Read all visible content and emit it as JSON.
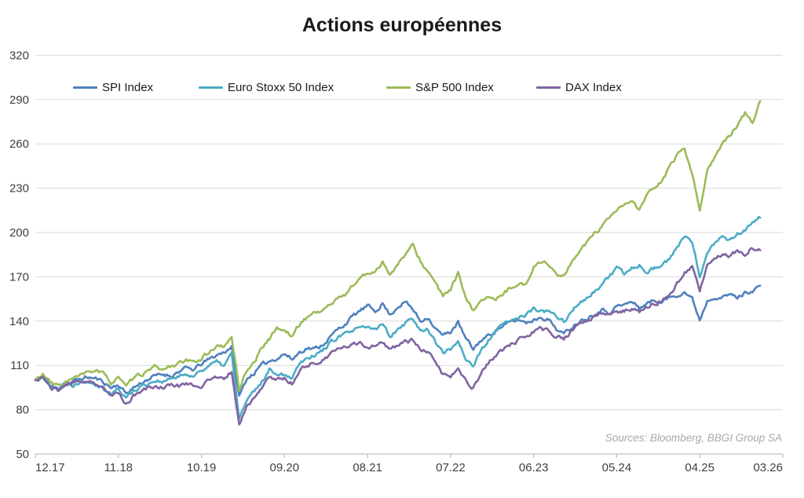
{
  "title": "Actions européennes",
  "source_note": "Sources: Bloomberg, BBGI Group SA",
  "colors": {
    "spi": "#4F81BD",
    "euro_stoxx": "#4BACC6",
    "sp500": "#9BBB59",
    "dax": "#8064A2",
    "gridline": "#d9d9d9",
    "axis_line": "#bfbfbf",
    "tick_text": "#3f3f3f"
  },
  "chart_data": {
    "type": "line",
    "title": "Actions européennes",
    "xlabel": "",
    "ylabel": "",
    "grid": true,
    "legend_position": "top",
    "x_axis": {
      "unit": "month_index_from_12.2017",
      "months_total": 99,
      "tick_months": [
        0,
        11,
        22,
        33,
        44,
        55,
        66,
        77,
        88,
        99
      ],
      "tick_labels": [
        "12.17",
        "11.18",
        "10.19",
        "09.20",
        "08.21",
        "07.22",
        "06.23",
        "05.24",
        "04.25",
        "03.26"
      ]
    },
    "y_axis": {
      "min": 50,
      "max": 320,
      "step": 30,
      "ticks": [
        50,
        80,
        110,
        140,
        170,
        200,
        230,
        260,
        290,
        320
      ]
    },
    "base_value": 100,
    "series": [
      {
        "name": "SPI Index",
        "color": "#4F81BD",
        "seed": 11,
        "values": [
          100,
          102,
          96,
          94,
          97,
          99,
          101,
          102,
          101,
          99,
          95,
          97,
          91,
          95,
          98,
          101,
          103,
          104,
          103,
          106,
          108,
          107,
          111,
          114,
          117,
          119,
          123,
          89,
          101,
          105,
          110,
          113,
          115,
          118,
          114,
          119,
          122,
          121,
          124,
          129,
          134,
          138,
          143,
          147,
          150,
          147,
          152,
          144,
          150,
          153,
          148,
          140,
          143,
          135,
          130,
          133,
          139,
          128,
          121,
          127,
          130,
          134,
          137,
          139,
          141,
          139,
          141,
          143,
          141,
          135,
          131,
          136,
          140,
          142,
          145,
          148,
          146,
          150,
          151,
          153,
          149,
          152,
          154,
          153,
          156,
          158,
          160,
          155,
          141,
          154,
          157,
          156,
          158,
          156,
          159,
          161,
          164
        ]
      },
      {
        "name": "Euro Stoxx 50 Index",
        "color": "#4BACC6",
        "seed": 22,
        "values": [
          100,
          103,
          97,
          95,
          98,
          97,
          99,
          100,
          98,
          95,
          91,
          94,
          88,
          93,
          96,
          98,
          100,
          99,
          101,
          102,
          104,
          103,
          107,
          110,
          112,
          110,
          118,
          74,
          86,
          92,
          99,
          107,
          105,
          104,
          102,
          112,
          116,
          117,
          120,
          125,
          129,
          131,
          133,
          135,
          136,
          134,
          138,
          130,
          135,
          139,
          142,
          133,
          135,
          126,
          118,
          121,
          127,
          115,
          110,
          119,
          127,
          133,
          138,
          140,
          143,
          144,
          148,
          147,
          146,
          143,
          140,
          146,
          152,
          156,
          160,
          164,
          170,
          175,
          172,
          176,
          178,
          174,
          176,
          178,
          182,
          190,
          197,
          193,
          170,
          188,
          194,
          197,
          195,
          199,
          202,
          206,
          210
        ]
      },
      {
        "name": "S&P 500 Index",
        "color": "#9BBB59",
        "seed": 33,
        "values": [
          100,
          104,
          98,
          96,
          99,
          101,
          103,
          105,
          107,
          104,
          98,
          103,
          95,
          101,
          104,
          106,
          109,
          107,
          110,
          111,
          113,
          112,
          115,
          119,
          123,
          122,
          130,
          94,
          107,
          112,
          122,
          128,
          136,
          133,
          130,
          138,
          143,
          146,
          147,
          151,
          155,
          158,
          164,
          169,
          172,
          174,
          180,
          172,
          178,
          185,
          191,
          181,
          173,
          166,
          156,
          162,
          172,
          155,
          146,
          155,
          157,
          153,
          159,
          163,
          166,
          164,
          177,
          181,
          178,
          172,
          170,
          179,
          188,
          193,
          199,
          203,
          209,
          215,
          218,
          222,
          215,
          225,
          230,
          234,
          245,
          252,
          256,
          240,
          216,
          242,
          251,
          259,
          266,
          273,
          281,
          274,
          289
        ]
      },
      {
        "name": "DAX Index",
        "color": "#8064A2",
        "seed": 44,
        "values": [
          100,
          102,
          95,
          93,
          97,
          98,
          99,
          100,
          98,
          94,
          89,
          92,
          84,
          89,
          92,
          95,
          96,
          95,
          97,
          96,
          98,
          97,
          96,
          100,
          102,
          100,
          106,
          70,
          82,
          88,
          94,
          102,
          101,
          101,
          98,
          106,
          111,
          111,
          113,
          117,
          121,
          122,
          124,
          126,
          122,
          124,
          126,
          120,
          124,
          126,
          127,
          121,
          118,
          112,
          104,
          102,
          108,
          99,
          95,
          104,
          112,
          117,
          121,
          124,
          127,
          129,
          133,
          135,
          133,
          130,
          128,
          133,
          138,
          140,
          143,
          145,
          144,
          146,
          147,
          148,
          146,
          150,
          152,
          154,
          158,
          165,
          172,
          178,
          159,
          178,
          183,
          186,
          184,
          188,
          185,
          190,
          188
        ]
      }
    ]
  },
  "legend": {
    "items": [
      {
        "label": "SPI Index",
        "color": "#4F81BD"
      },
      {
        "label": "Euro Stoxx 50 Index",
        "color": "#4BACC6"
      },
      {
        "label": "S&P 500 Index",
        "color": "#9BBB59"
      },
      {
        "label": "DAX Index",
        "color": "#8064A2"
      }
    ]
  }
}
